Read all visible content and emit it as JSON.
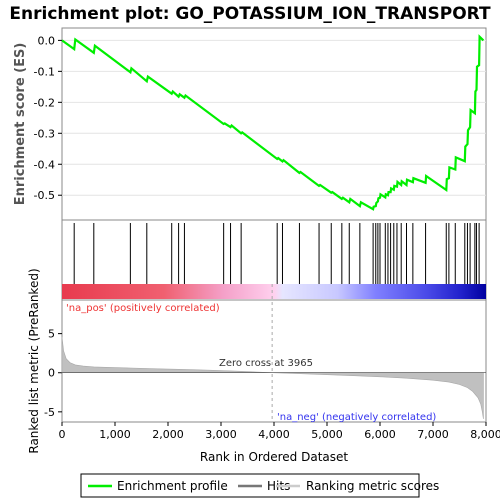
{
  "chart_data": {
    "type": "line",
    "title": "Enrichment plot: GO_POTASSIUM_ION_TRANSPORT",
    "top_panel": {
      "ylabel": "Enrichment score (ES)",
      "ylim": [
        -0.58,
        0.04
      ],
      "yticks": [
        0.0,
        -0.1,
        -0.2,
        -0.3,
        -0.4,
        -0.5
      ],
      "ytick_labels": [
        "0.0",
        "-0.1",
        "-0.2",
        "-0.3",
        "-0.4",
        "-0.5"
      ],
      "series": [
        {
          "name": "Enrichment profile",
          "color": "#00ee00",
          "x": [
            0,
            230,
            250,
            600,
            620,
            1290,
            1310,
            1600,
            1620,
            2070,
            2090,
            2200,
            2220,
            2310,
            2330,
            3050,
            3070,
            3180,
            3200,
            3380,
            3400,
            4060,
            4080,
            4160,
            4180,
            4480,
            4500,
            4850,
            4870,
            5080,
            5100,
            5280,
            5300,
            5420,
            5440,
            5620,
            5640,
            5870,
            5880,
            5920,
            5930,
            5960,
            5970,
            6000,
            6010,
            6100,
            6110,
            6150,
            6160,
            6200,
            6210,
            6260,
            6270,
            6320,
            6330,
            6400,
            6410,
            6500,
            6510,
            6620,
            6630,
            6860,
            6870,
            7250,
            7260,
            7300,
            7310,
            7420,
            7430,
            7600,
            7610,
            7650,
            7660,
            7700,
            7710,
            7790,
            7800,
            7820,
            7830,
            7870,
            7880,
            7950
          ],
          "y": [
            0.0,
            -0.028,
            0.003,
            -0.04,
            -0.017,
            -0.103,
            -0.09,
            -0.132,
            -0.117,
            -0.172,
            -0.165,
            -0.182,
            -0.174,
            -0.185,
            -0.178,
            -0.27,
            -0.268,
            -0.28,
            -0.275,
            -0.3,
            -0.297,
            -0.383,
            -0.38,
            -0.391,
            -0.387,
            -0.428,
            -0.425,
            -0.47,
            -0.467,
            -0.492,
            -0.49,
            -0.512,
            -0.508,
            -0.523,
            -0.512,
            -0.535,
            -0.523,
            -0.545,
            -0.537,
            -0.535,
            -0.525,
            -0.52,
            -0.51,
            -0.508,
            -0.497,
            -0.507,
            -0.497,
            -0.5,
            -0.49,
            -0.49,
            -0.478,
            -0.482,
            -0.47,
            -0.472,
            -0.457,
            -0.467,
            -0.455,
            -0.467,
            -0.45,
            -0.458,
            -0.445,
            -0.46,
            -0.438,
            -0.483,
            -0.448,
            -0.445,
            -0.41,
            -0.417,
            -0.378,
            -0.39,
            -0.343,
            -0.335,
            -0.29,
            -0.28,
            -0.225,
            -0.235,
            -0.165,
            -0.16,
            -0.085,
            -0.08,
            0.012,
            0.0
          ]
        }
      ]
    },
    "hits_panel": {
      "hit_positions": [
        230,
        600,
        1290,
        1600,
        2070,
        2200,
        2310,
        3050,
        3180,
        3380,
        4060,
        4160,
        4480,
        4850,
        5080,
        5280,
        5420,
        5620,
        5870,
        5920,
        5960,
        6000,
        6100,
        6150,
        6200,
        6260,
        6320,
        6400,
        6500,
        6620,
        6860,
        7250,
        7300,
        7420,
        7600,
        7650,
        7700,
        7790,
        7820,
        7870
      ]
    },
    "bottom_panel": {
      "ylabel": "Ranked list metric (PreRanked)",
      "ylim": [
        -6.3,
        9.3
      ],
      "yticks": [
        5,
        0,
        -5
      ],
      "ytick_labels": [
        "5",
        "0",
        "-5"
      ],
      "metric_profile": {
        "x": [
          0,
          30,
          80,
          150,
          250,
          400,
          600,
          900,
          1300,
          1800,
          2400,
          3000,
          3500,
          3965,
          4500,
          5000,
          5500,
          6000,
          6500,
          7000,
          7300,
          7500,
          7650,
          7750,
          7850,
          7900,
          7930,
          7950
        ],
        "y": [
          4.6,
          2.8,
          1.8,
          1.3,
          1.0,
          0.85,
          0.75,
          0.68,
          0.6,
          0.5,
          0.4,
          0.28,
          0.15,
          0.0,
          -0.12,
          -0.25,
          -0.38,
          -0.52,
          -0.7,
          -0.95,
          -1.2,
          -1.5,
          -1.9,
          -2.4,
          -3.2,
          -4.0,
          -5.0,
          -5.9
        ]
      },
      "zero_cross_x": 3965
    },
    "xaxis": {
      "label": "Rank in Ordered Dataset",
      "xlim": [
        0,
        8000
      ],
      "ticks": [
        0,
        1000,
        2000,
        3000,
        4000,
        5000,
        6000,
        7000,
        8000
      ],
      "tick_labels": [
        "0",
        "1,000",
        "2,000",
        "3,000",
        "4,000",
        "5,000",
        "6,000",
        "7,000",
        "8,000"
      ]
    },
    "annotations": {
      "pos_label": "'na_pos' (positively correlated)",
      "neg_label": "'na_neg' (negatively correlated)",
      "zero_cross": "Zero cross at 3965",
      "pos_color": "#ee3333",
      "neg_color": "#3333ee"
    },
    "legend": {
      "placement": "bottom",
      "items": [
        {
          "label": "Enrichment profile",
          "color": "#00ee00"
        },
        {
          "label": "Hits",
          "color": "#777777"
        },
        {
          "label": "Ranking metric scores",
          "color": "#cccccc"
        }
      ]
    }
  }
}
